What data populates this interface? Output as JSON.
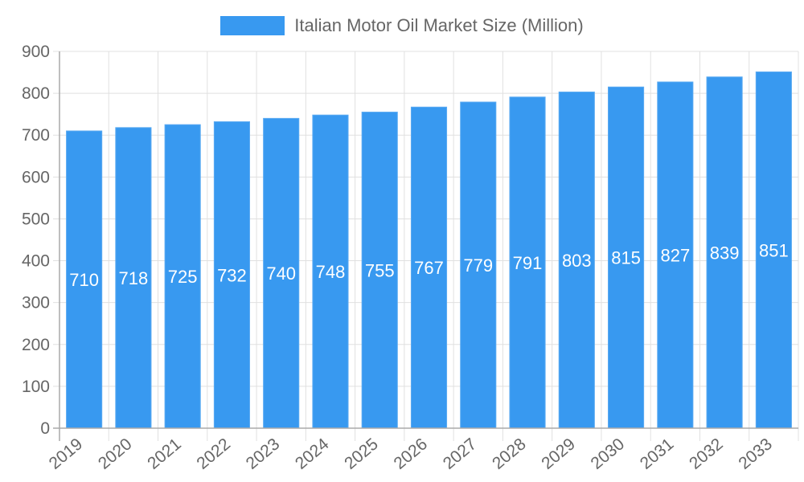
{
  "chart_data": {
    "type": "bar",
    "title": "",
    "legend": [
      {
        "label": "Italian Motor Oil Market Size (Million)",
        "color": "#3899f0"
      }
    ],
    "legend_position": "top",
    "categories": [
      "2019",
      "2020",
      "2021",
      "2022",
      "2023",
      "2024",
      "2025",
      "2026",
      "2027",
      "2028",
      "2029",
      "2030",
      "2031",
      "2032",
      "2033"
    ],
    "series": [
      {
        "name": "Italian Motor Oil Market Size (Million)",
        "values": [
          710,
          718,
          725,
          732,
          740,
          748,
          755,
          767,
          779,
          791,
          803,
          815,
          827,
          839,
          851
        ]
      }
    ],
    "xlabel": "",
    "ylabel": "",
    "ylim": [
      0,
      900
    ],
    "yticks": [
      0,
      100,
      200,
      300,
      400,
      500,
      600,
      700,
      800,
      900
    ],
    "grid": true,
    "data_labels": true,
    "bar_color": "#3899f0",
    "label_color": "#ffffff",
    "tick_color": "#666666"
  }
}
